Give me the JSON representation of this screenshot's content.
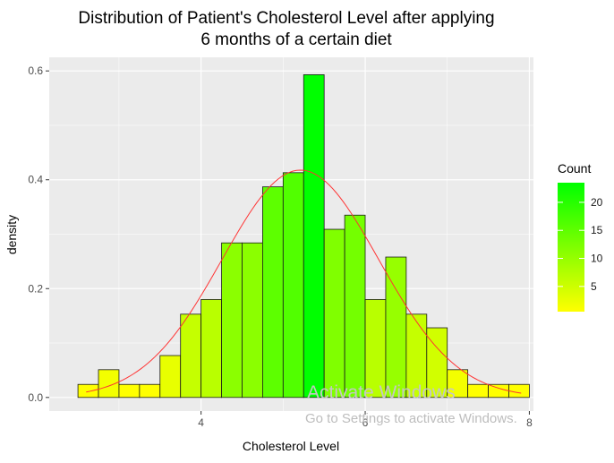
{
  "chart_data": {
    "type": "bar",
    "subtype": "histogram-with-density-curve",
    "title": [
      "Distribution of Patient's Cholesterol Level after applying",
      "6 months of a certain diet"
    ],
    "xlabel": "Cholesterol Level",
    "ylabel": "density",
    "xlim": [
      2.15,
      8.05
    ],
    "ylim": [
      -0.025,
      0.625
    ],
    "x_ticks": [
      4,
      6,
      8
    ],
    "y_ticks": [
      0.0,
      0.2,
      0.4,
      0.6
    ],
    "y_tick_labels": [
      "0.0",
      "0.2",
      "0.4",
      "0.6"
    ],
    "binwidth": 0.25,
    "bins": [
      {
        "x0": 2.5,
        "x1": 2.75,
        "density": 0.024,
        "count": 1
      },
      {
        "x0": 2.75,
        "x1": 3.0,
        "density": 0.051,
        "count": 2
      },
      {
        "x0": 3.0,
        "x1": 3.25,
        "density": 0.024,
        "count": 1
      },
      {
        "x0": 3.25,
        "x1": 3.5,
        "density": 0.024,
        "count": 1
      },
      {
        "x0": 3.5,
        "x1": 3.75,
        "density": 0.077,
        "count": 3
      },
      {
        "x0": 3.75,
        "x1": 4.0,
        "density": 0.153,
        "count": 6
      },
      {
        "x0": 4.0,
        "x1": 4.25,
        "density": 0.18,
        "count": 7
      },
      {
        "x0": 4.25,
        "x1": 4.5,
        "density": 0.284,
        "count": 11
      },
      {
        "x0": 4.5,
        "x1": 4.75,
        "density": 0.284,
        "count": 11
      },
      {
        "x0": 4.75,
        "x1": 5.0,
        "density": 0.387,
        "count": 15
      },
      {
        "x0": 5.0,
        "x1": 5.25,
        "density": 0.413,
        "count": 16
      },
      {
        "x0": 5.25,
        "x1": 5.5,
        "density": 0.593,
        "count": 23
      },
      {
        "x0": 5.5,
        "x1": 5.75,
        "density": 0.309,
        "count": 12
      },
      {
        "x0": 5.75,
        "x1": 6.0,
        "density": 0.335,
        "count": 13
      },
      {
        "x0": 6.0,
        "x1": 6.25,
        "density": 0.18,
        "count": 7
      },
      {
        "x0": 6.25,
        "x1": 6.5,
        "density": 0.258,
        "count": 10
      },
      {
        "x0": 6.5,
        "x1": 6.75,
        "density": 0.153,
        "count": 6
      },
      {
        "x0": 6.75,
        "x1": 7.0,
        "density": 0.128,
        "count": 5
      },
      {
        "x0": 7.0,
        "x1": 7.25,
        "density": 0.051,
        "count": 2
      },
      {
        "x0": 7.25,
        "x1": 7.5,
        "density": 0.024,
        "count": 1
      },
      {
        "x0": 7.5,
        "x1": 7.75,
        "density": 0.024,
        "count": 1
      },
      {
        "x0": 7.75,
        "x1": 8.0,
        "density": 0.024,
        "count": 1
      }
    ],
    "density_curve": {
      "mean": 5.21,
      "sd": 0.955,
      "x_range": [
        2.6,
        7.9
      ],
      "color": "#ff3333"
    },
    "fill_scale": {
      "low": "#ffff00",
      "high": "#00ff00",
      "min": 1,
      "max": 23
    },
    "legend": {
      "title": "Count",
      "position": "right",
      "labels": [
        "20",
        "15",
        "10",
        "5"
      ],
      "label_values": [
        20,
        15,
        10,
        5
      ]
    },
    "grid": true,
    "panel_background": "#ebebeb",
    "grid_color": "#ffffff",
    "bar_outline": "#1a1a1a"
  },
  "watermark": {
    "line1": "Activate Windows",
    "line2": "Go to Settings to activate Windows."
  }
}
